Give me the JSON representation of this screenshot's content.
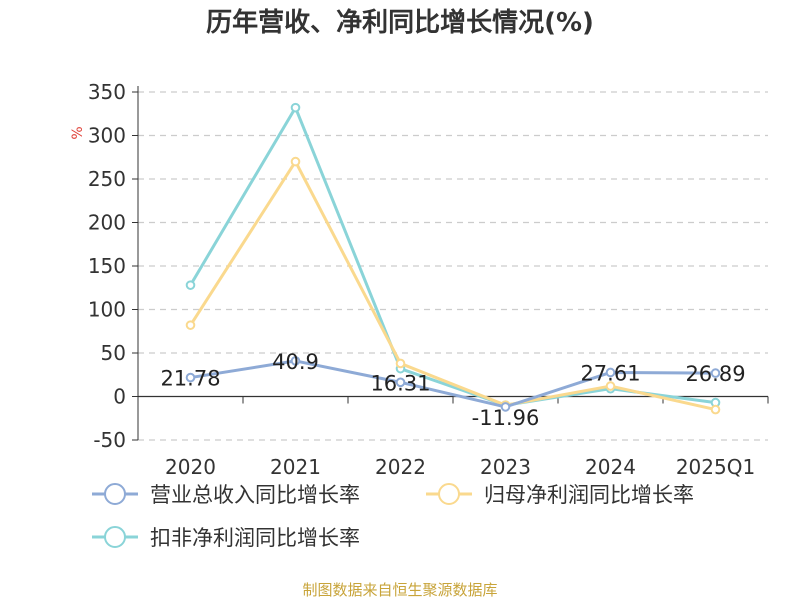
{
  "chart_data": {
    "type": "line",
    "title": "历年营收、净利同比增长情况(%)",
    "ylabel": "%",
    "xlabel": "",
    "ylim": [
      -50,
      350
    ],
    "y_ticks": [
      -50,
      0,
      50,
      100,
      150,
      200,
      250,
      300,
      350
    ],
    "grid": true,
    "legend_position": "bottom",
    "categories": [
      "2020",
      "2021",
      "2022",
      "2023",
      "2024",
      "2025Q1"
    ],
    "series": [
      {
        "name": "营业总收入同比增长率",
        "color": "#8eaad6",
        "values": [
          21.78,
          40.9,
          16.31,
          -11.96,
          27.61,
          26.89
        ],
        "labels": [
          "21.78",
          "40.9",
          "16.31",
          "-11.96",
          "27.61",
          "26.89"
        ]
      },
      {
        "name": "归母净利润同比增长率",
        "color": "#fad98e",
        "values": [
          82,
          270,
          38,
          -10,
          12,
          -15
        ]
      },
      {
        "name": "扣非净利润同比增长率",
        "color": "#8ad4d8",
        "values": [
          128,
          332,
          32,
          -10,
          9,
          -7
        ]
      }
    ]
  },
  "source_note": "制图数据来自恒生聚源数据库"
}
